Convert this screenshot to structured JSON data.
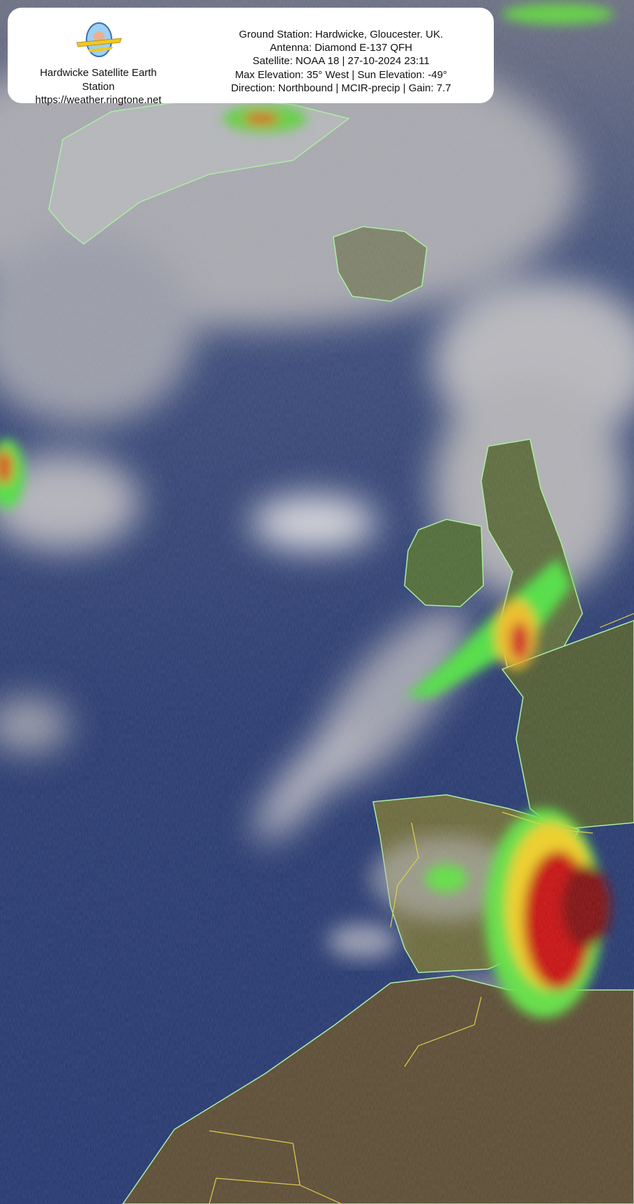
{
  "station": {
    "name_line1": "Hardwicke Satellite Earth",
    "name_line2": "Station",
    "url": "https://weather.ringtone.net",
    "logo": "the-pebble-flyer-logo"
  },
  "pass_info": {
    "ground_station": "Ground Station: Hardwicke, Gloucester. UK.",
    "antenna": "Antenna: Diamond E-137 QFH",
    "satellite": "Satellite: NOAA 18 | 27-10-2024 23:11",
    "elevation": "Max Elevation: 35° West | Sun Elevation: -49°",
    "direction": "Direction: Northbound | MCIR-precip | Gain: 7.7"
  },
  "colors": {
    "ocean": "#26386e",
    "cloud": "#c8c8cc",
    "land": "#5e6a3a",
    "coastline": "#a8f0a0",
    "border": "#e0d040",
    "precip_heavy": "#c01010",
    "precip_light": "#40e040"
  }
}
